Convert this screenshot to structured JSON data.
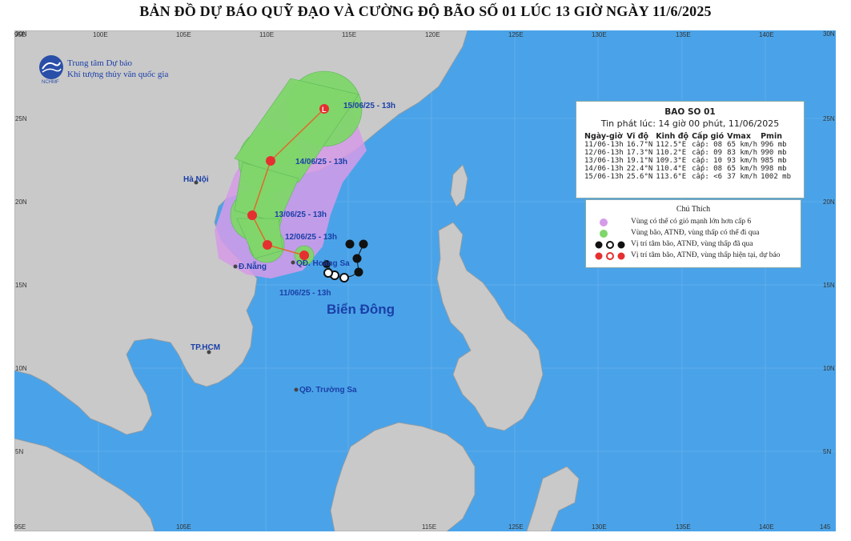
{
  "title": "BẢN ĐỒ DỰ BÁO QUỸ ĐẠO VÀ CƯỜNG ĐỘ BÃO SỐ 01 LÚC 13 GIỜ NGÀY 11/6/2025",
  "agency": {
    "line1": "Trung tâm Dự báo",
    "line2": "Khí tượng thủy văn quốc gia",
    "logo_text": "NCHMF"
  },
  "axes": {
    "top_lon_labels": [
      "95E",
      "100E",
      "105E",
      "110E",
      "115E",
      "120E",
      "125E",
      "130E",
      "135E",
      "140E"
    ],
    "bottom_lon_labels": [
      "95E",
      "105E",
      "115E",
      "125E",
      "130E",
      "135E",
      "140E",
      "145"
    ],
    "left_lat_labels": [
      "30N",
      "25N",
      "20N",
      "15N",
      "10N",
      "5N"
    ],
    "right_lat_labels": [
      "30N",
      "25N",
      "20N",
      "15N",
      "10N",
      "5N"
    ]
  },
  "places": {
    "hanoi": "Hà Nội",
    "danang": "Đ.Nẵng",
    "hoangsa": "QĐ. Hoàng Sa",
    "hcm": "TP.HCM",
    "truongsa": "QĐ. Trường Sa",
    "sea": "Biển Đông"
  },
  "track_labels": [
    "15/06/25 - 13h",
    "14/06/25 - 13h",
    "13/06/25 - 13h",
    "12/06/25 - 13h",
    "11/06/25 - 13h"
  ],
  "info": {
    "title": "BAO SO 01",
    "issued": "Tin phát lúc: 14 giờ 00 phút, 11/06/2025",
    "headers": [
      "Ngày-giờ",
      "Vĩ độ",
      "Kinh độ",
      "Cấp gió",
      "Vmax",
      "Pmin"
    ],
    "rows": [
      [
        "11/06-13h",
        "16.7°N",
        "112.5°E",
        "cấp: 08",
        "65 km/h",
        "996 mb"
      ],
      [
        "12/06-13h",
        "17.3°N",
        "110.2°E",
        "cấp: 09",
        "83 km/h",
        "990 mb"
      ],
      [
        "13/06-13h",
        "19.1°N",
        "109.3°E",
        "cấp: 10",
        "93 km/h",
        "985 mb"
      ],
      [
        "14/06-13h",
        "22.4°N",
        "110.4°E",
        "cấp: 08",
        "65 km/h",
        "998 mb"
      ],
      [
        "15/06-13h",
        "25.6°N",
        "113.6°E",
        "cấp: <6",
        "37 km/h",
        "1002 mb"
      ]
    ]
  },
  "legend": {
    "title": "Chú Thích",
    "items": [
      "Vùng có thể có gió mạnh lớn hơn cấp 6",
      "Vùng bão, ATNĐ, vùng thấp có thể đi qua",
      "Vị trí tâm bão, ATNĐ, vùng thấp đã qua",
      "Vị trí tâm bão, ATNĐ, vùng thấp hiện tại, dự báo"
    ]
  },
  "colors": {
    "sea": "#4aa3e8",
    "land": "#c9c9c9",
    "cone": "#7fd66a",
    "wind_zone": "#d69be8",
    "track": "#e06a2a",
    "current": "#e53030",
    "past": "#111111",
    "label": "#1a3fa8"
  }
}
